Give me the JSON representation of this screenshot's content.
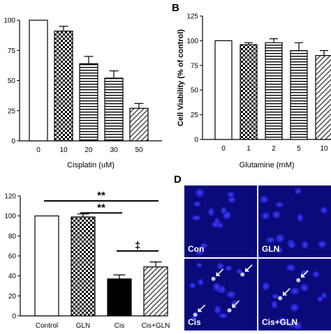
{
  "panels": [
    {
      "id": "A",
      "label": ""
    },
    {
      "id": "B",
      "label": "B"
    },
    {
      "id": "C",
      "label": ""
    },
    {
      "id": "D",
      "label": "D"
    }
  ],
  "chart_data": [
    {
      "panel": "A",
      "type": "bar",
      "categories": [
        "0",
        "10",
        "20",
        "30",
        "50"
      ],
      "values": [
        100,
        91,
        64,
        52,
        27
      ],
      "errors": [
        0,
        4,
        6,
        6,
        4
      ],
      "patterns": [
        "solid-white",
        "checker",
        "hstripe",
        "hstripe",
        "dstripe"
      ],
      "xlabel": "Cisplatin (uM)",
      "ylabel": "",
      "ylim": [
        0,
        100
      ],
      "yticks": [
        0,
        25,
        50,
        75,
        100
      ]
    },
    {
      "panel": "B",
      "type": "bar",
      "categories": [
        "0",
        "1",
        "2",
        "5",
        "10"
      ],
      "values": [
        100,
        96,
        98,
        90,
        85
      ],
      "errors": [
        0,
        2,
        4,
        8,
        5
      ],
      "patterns": [
        "solid-white",
        "checker",
        "hstripe",
        "hstripe",
        "dstripe"
      ],
      "xlabel": "Glutamine (mM)",
      "ylabel": "Cell Viability (% of control)",
      "ylim": [
        0,
        125
      ],
      "yticks": [
        0,
        25,
        50,
        75,
        100,
        125
      ]
    },
    {
      "panel": "C",
      "type": "bar",
      "categories": [
        "Control",
        "GLN",
        "Cis",
        "Cis+GLN"
      ],
      "values": [
        100,
        99,
        37,
        49
      ],
      "errors": [
        0,
        3,
        4,
        5
      ],
      "patterns": [
        "white",
        "checker",
        "black",
        "dstripe"
      ],
      "xlabel": "",
      "ylabel": "",
      "ylim": [
        0,
        120
      ],
      "yticks": [
        0,
        20,
        40,
        60,
        80,
        100,
        120
      ],
      "annotations": [
        {
          "text": "**",
          "from": 0,
          "to": 3,
          "y": 115
        },
        {
          "text": "**",
          "from": 1,
          "to": 2,
          "y": 103
        },
        {
          "text": "‡",
          "from": 2,
          "to": 3,
          "y": 65
        }
      ]
    }
  ],
  "micrographs": {
    "panel": "D",
    "images": [
      {
        "label": "Con",
        "arrows": 0
      },
      {
        "label": "GLN",
        "arrows": 0
      },
      {
        "label": "Cis",
        "arrows": 4
      },
      {
        "label": "Cis+GLN",
        "arrows": 2
      }
    ]
  },
  "colors": {
    "background": "#0a0a7a",
    "nucleus": "#3d3dff",
    "bright": "#c8c8ff"
  }
}
